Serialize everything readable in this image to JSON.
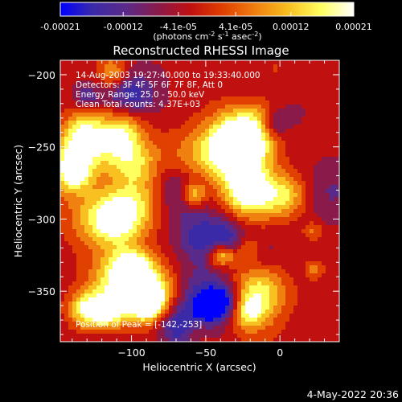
{
  "colorbar": {
    "tick_labels": [
      "-0.00021",
      "-0.00012",
      "-4.1e-05",
      "4.1e-05",
      "0.00012",
      "0.00021"
    ],
    "tick_values": [
      -0.00021,
      -0.00012,
      -4.1e-05,
      4.1e-05,
      0.00012,
      0.00021
    ],
    "range": [
      -0.00021,
      0.00021
    ],
    "units_prefix": "(photons cm",
    "units_exp1": "-2",
    "units_mid1": " s",
    "units_exp2": "-1",
    "units_mid2": " asec",
    "units_exp3": "-2",
    "units_suffix": ")",
    "colormap": [
      "#0000ff",
      "#3a2aa8",
      "#5a2a8a",
      "#8a1a4a",
      "#c01010",
      "#e04000",
      "#f08010",
      "#f8c020",
      "#ffff60",
      "#ffffff"
    ]
  },
  "image": {
    "title": "Reconstructed RHESSI Image",
    "info_lines": [
      "14-Aug-2003 19:27:40.000 to 19:33:40.000",
      "Detectors: 3F 4F 5F 6F 7F 8F, Att 0",
      "Energy Range: 25.0 - 50.0 keV",
      "Clean    Total counts: 4.37E+03"
    ],
    "peak_label": "Position of Peak = [-142,-253]",
    "xlabel": "Heliocentric X (arcsec)",
    "ylabel": "Heliocentric Y (arcsec)",
    "xlim": [
      -148,
      40
    ],
    "ylim": [
      -385,
      -190
    ],
    "x_ticks": [
      -100,
      -50,
      0
    ],
    "x_tick_labels": [
      "−100",
      "−50",
      "0"
    ],
    "y_ticks": [
      -200,
      -250,
      -300,
      -350
    ],
    "y_tick_labels": [
      "−200",
      "−250",
      "−300",
      "−350"
    ],
    "peak": [
      -142,
      -253
    ]
  },
  "timestamp": "4-May-2022 20:36"
}
